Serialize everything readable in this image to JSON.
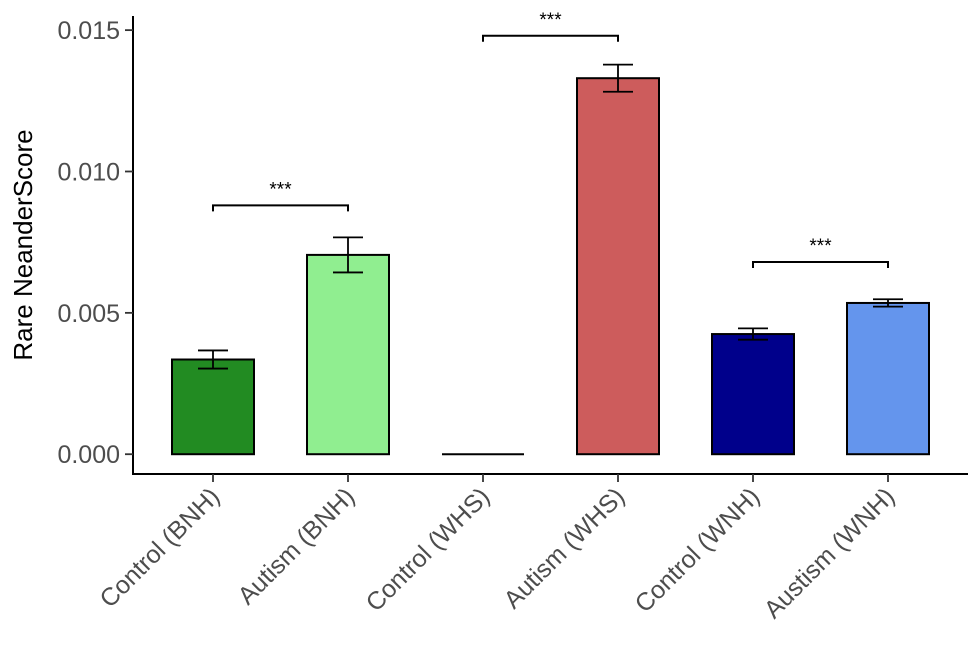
{
  "chart_data": {
    "type": "bar",
    "ylabel": "Rare NeanderScore",
    "xlabel": "",
    "ylim": [
      -0.0007,
      0.0155
    ],
    "yticks": [
      0.0,
      0.005,
      0.01,
      0.015
    ],
    "ytick_labels": [
      "0.000",
      "0.005",
      "0.010",
      "0.015"
    ],
    "grid": false,
    "categories": [
      "Control (BNH)",
      "Autism (BNH)",
      "Control (WHS)",
      "Autism (WHS)",
      "Control (WNH)",
      "Austism (WNH)"
    ],
    "values": [
      0.00335,
      0.00705,
      0.0,
      0.0133,
      0.00425,
      0.00535
    ],
    "error": [
      0.00032,
      0.00062,
      0.0,
      0.00048,
      0.0002,
      0.00013
    ],
    "colors": [
      "#228B22",
      "#90EE90",
      "#FFFFFF",
      "#CD5C5C",
      "#00008B",
      "#6495ED"
    ],
    "significance": [
      {
        "from": 0,
        "to": 1,
        "y": 0.0088,
        "label": "***"
      },
      {
        "from": 2,
        "to": 3,
        "y": 0.0148,
        "label": "***"
      },
      {
        "from": 4,
        "to": 5,
        "y": 0.0068,
        "label": "***"
      }
    ]
  }
}
